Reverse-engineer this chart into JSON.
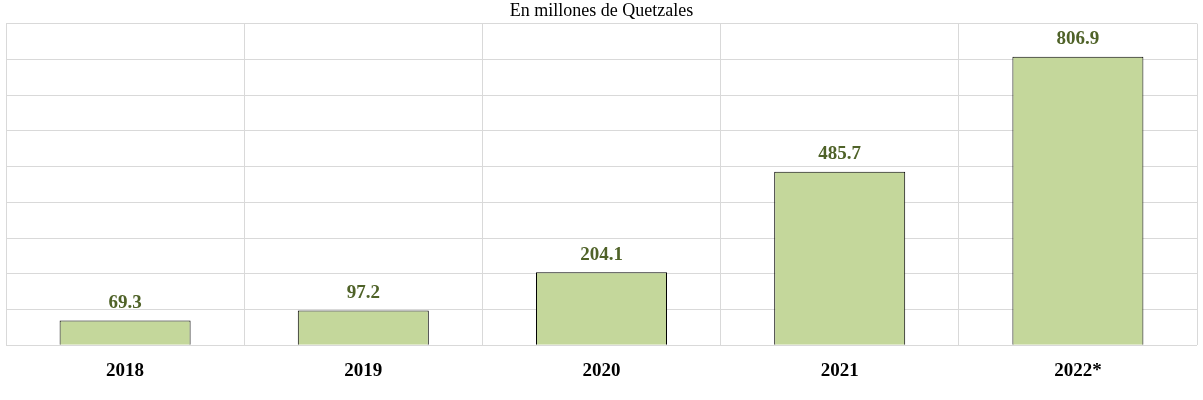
{
  "chart_data": {
    "type": "bar",
    "title": "En millones de Quetzales",
    "categories": [
      "2018",
      "2019",
      "2020",
      "2021",
      "2022*"
    ],
    "values": [
      69.3,
      97.2,
      204.1,
      485.7,
      806.9
    ],
    "color": "#c4d79b",
    "tick_labels": "x",
    "grid": true,
    "data_labels": true
  }
}
